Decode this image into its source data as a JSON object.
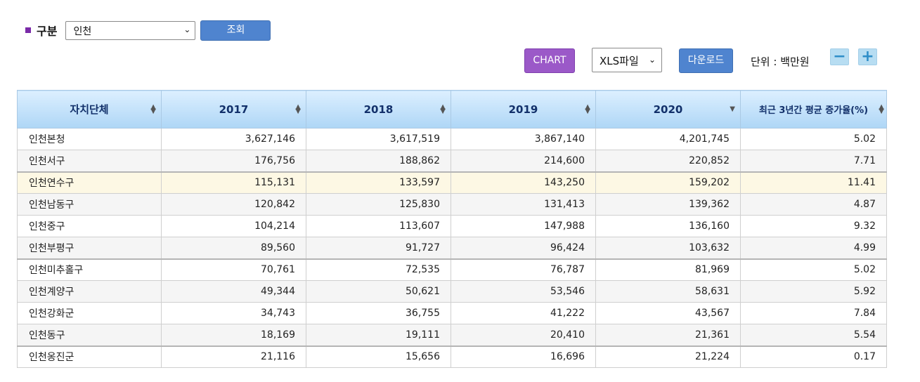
{
  "filter": {
    "label": "구분",
    "region": "인천",
    "search_label": "조회"
  },
  "toolbar": {
    "chart_label": "CHART",
    "format": "XLS파일",
    "download_label": "다운로드",
    "unit": "단위 : 백만원",
    "zoom_out": "−",
    "zoom_in": "+"
  },
  "table": {
    "headers": [
      "자치단체",
      "2017",
      "2018",
      "2019",
      "2020",
      "최근 3년간 평균 증가율(%)"
    ],
    "rows": [
      [
        "인천본청",
        "3,627,146",
        "3,617,519",
        "3,867,140",
        "4,201,745",
        "5.02"
      ],
      [
        "인천서구",
        "176,756",
        "188,862",
        "214,600",
        "220,852",
        "7.71"
      ],
      [
        "인천연수구",
        "115,131",
        "133,597",
        "143,250",
        "159,202",
        "11.41"
      ],
      [
        "인천남동구",
        "120,842",
        "125,830",
        "131,413",
        "139,362",
        "4.87"
      ],
      [
        "인천중구",
        "104,214",
        "113,607",
        "147,988",
        "136,160",
        "9.32"
      ],
      [
        "인천부평구",
        "89,560",
        "91,727",
        "96,424",
        "103,632",
        "4.99"
      ],
      [
        "인천미추홀구",
        "70,761",
        "72,535",
        "76,787",
        "81,969",
        "5.02"
      ],
      [
        "인천계양구",
        "49,344",
        "50,621",
        "53,546",
        "58,631",
        "5.92"
      ],
      [
        "인천강화군",
        "34,743",
        "36,755",
        "41,222",
        "43,567",
        "7.84"
      ],
      [
        "인천동구",
        "18,169",
        "19,111",
        "20,410",
        "21,361",
        "5.54"
      ],
      [
        "인천옹진군",
        "21,116",
        "15,656",
        "16,696",
        "21,224",
        "0.17"
      ]
    ]
  },
  "colors": {
    "accent_purple": "#9b59c8",
    "button_blue": "#4f84cf",
    "header_blue": "#aed6f6",
    "highlight_row": "#fdf8e4"
  }
}
